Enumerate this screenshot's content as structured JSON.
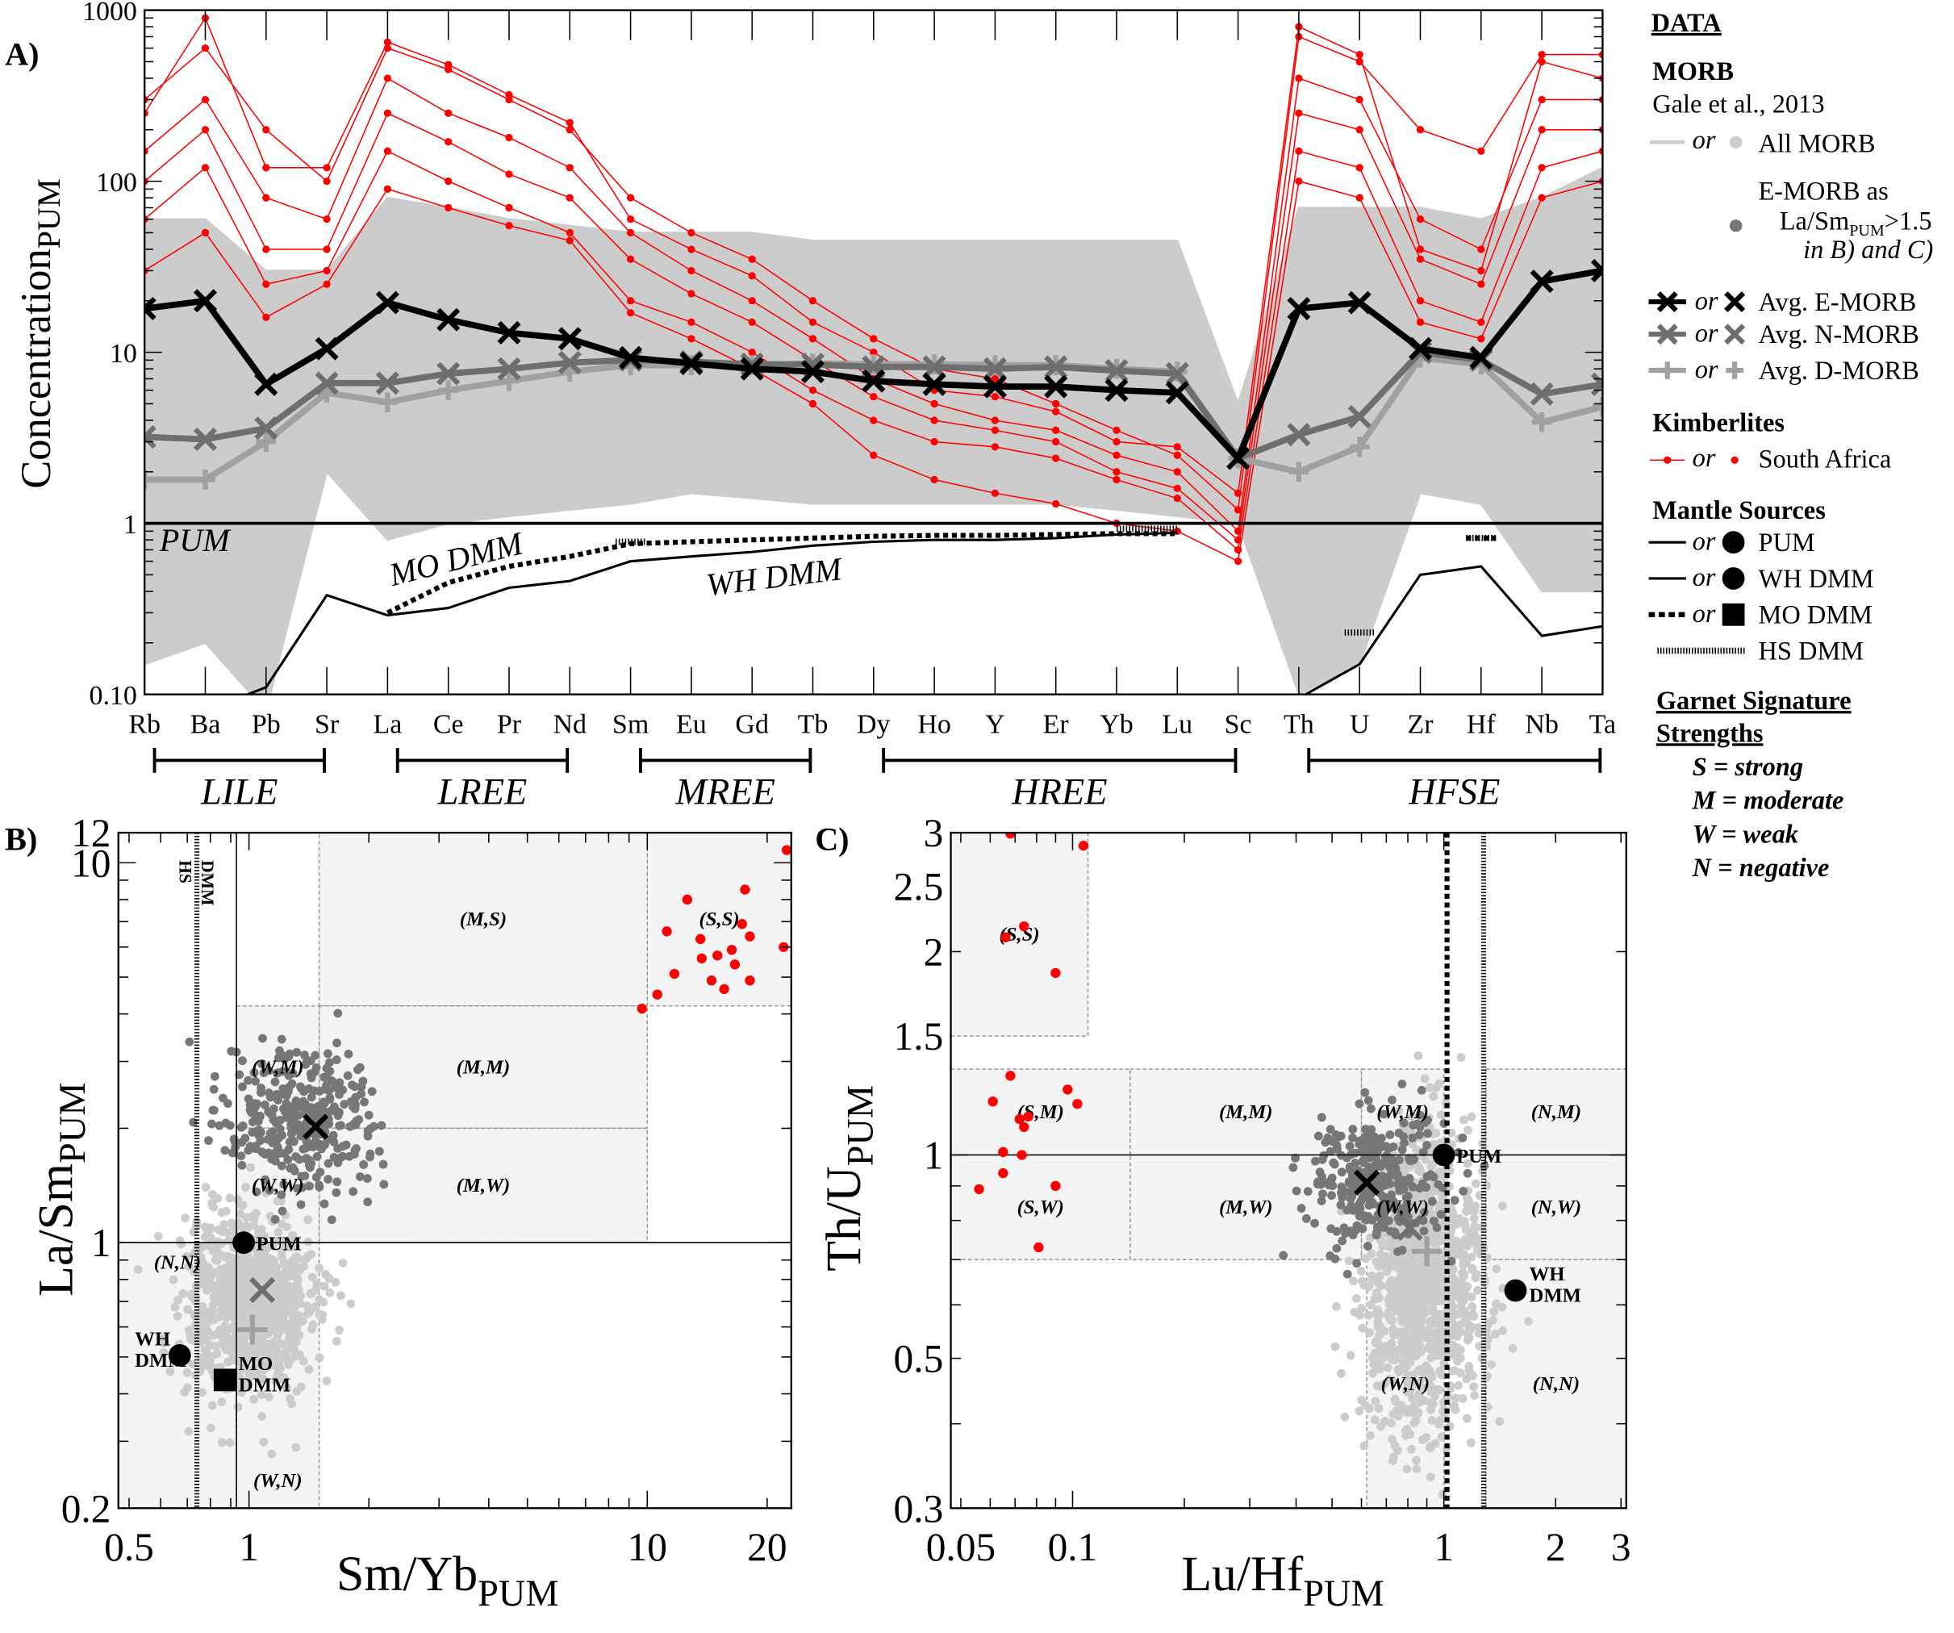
{
  "panels": {
    "a": "A)",
    "b": "B)",
    "c": "C)"
  },
  "legend": {
    "title": "DATA",
    "morb_heading": "MORB",
    "morb_source": "Gale et al., 2013",
    "or": "or",
    "all_morb": "All MORB",
    "emorb_def_1": "E-MORB as",
    "emorb_def_2": "La/Sm",
    "emorb_def_sub": "PUM",
    "emorb_def_3": ">1.5",
    "emorb_def_4": "in B) and C)",
    "avg_e": "Avg. E-MORB",
    "avg_n": "Avg. N-MORB",
    "avg_d": "Avg. D-MORB",
    "kimb_heading": "Kimberlites",
    "kimb_sa": "South Africa",
    "mantle_heading": "Mantle Sources",
    "pum": "PUM",
    "wh": "WH DMM",
    "mo": "MO DMM",
    "hs": "HS DMM",
    "garnet_1": "Garnet Signature",
    "garnet_2": "Strengths",
    "s": "S = strong",
    "m": "M = moderate",
    "w": "W = weak",
    "n": "N = negative"
  },
  "colors": {
    "emorb": "#000000",
    "nmorb": "#6e6e6e",
    "dmorb": "#a0a0a0",
    "morb": "#cccccc",
    "emorb_points": "#777777",
    "kimberlite": "#ff0000"
  },
  "chart_data": [
    {
      "type": "line",
      "panel": "A)",
      "yscale": "log",
      "ylim": [
        0.1,
        1000
      ],
      "ylabel": "Concentration",
      "ylabel_sub": "PUM",
      "y_ticks": [
        {
          "v": 1000,
          "t": "1000"
        },
        {
          "v": 100,
          "t": "100"
        },
        {
          "v": 10,
          "t": "10"
        },
        {
          "v": 1,
          "t": "1"
        },
        {
          "v": 0.1,
          "t": "0.10"
        }
      ],
      "categories": [
        "Rb",
        "Ba",
        "Pb",
        "Sr",
        "La",
        "Ce",
        "Pr",
        "Nd",
        "Sm",
        "Eu",
        "Gd",
        "Tb",
        "Dy",
        "Ho",
        "Y",
        "Er",
        "Yb",
        "Lu",
        "Sc",
        "Th",
        "U",
        "Zr",
        "Hf",
        "Nb",
        "Ta"
      ],
      "groups": [
        {
          "label": "LILE",
          "from": "Rb",
          "to": "Sr"
        },
        {
          "label": "LREE",
          "from": "La",
          "to": "Nd"
        },
        {
          "label": "MREE",
          "from": "Sm",
          "to": "Tb"
        },
        {
          "label": "HREE",
          "from": "Dy",
          "to": "Sc"
        },
        {
          "label": "HFSE",
          "from": "Th",
          "to": "Ta"
        }
      ],
      "morb_envelope": {
        "upper": [
          60,
          60,
          30,
          30,
          80,
          70,
          60,
          55,
          50,
          50,
          50,
          45,
          45,
          45,
          45,
          45,
          45,
          45,
          5,
          70,
          70,
          70,
          60,
          80,
          120
        ],
        "lower": [
          0.15,
          0.2,
          0.08,
          2,
          0.8,
          1.0,
          1.1,
          1.2,
          1.3,
          1.5,
          1.4,
          1.3,
          1.3,
          1.3,
          1.3,
          1.3,
          1.2,
          1.1,
          1.0,
          0.1,
          0.15,
          1.5,
          1.3,
          0.4,
          0.4
        ]
      },
      "kimberlites": [
        [
          300,
          600,
          200,
          100,
          600,
          450,
          300,
          200,
          80,
          50,
          35,
          20,
          12,
          8,
          7,
          5,
          3.5,
          2.5,
          1.2,
          700,
          500,
          200,
          150,
          550,
          550
        ],
        [
          150,
          300,
          80,
          60,
          400,
          250,
          180,
          120,
          50,
          30,
          20,
          12,
          7,
          5,
          4,
          3.5,
          2.5,
          2,
          0.9,
          400,
          300,
          60,
          40,
          300,
          300
        ],
        [
          100,
          200,
          40,
          40,
          250,
          170,
          110,
          80,
          35,
          22,
          15,
          9,
          5.5,
          4,
          3.5,
          3,
          2,
          1.6,
          0.8,
          250,
          200,
          35,
          25,
          200,
          200
        ],
        [
          60,
          120,
          25,
          30,
          150,
          100,
          70,
          50,
          20,
          15,
          10,
          6,
          4,
          3,
          2.8,
          2.4,
          1.8,
          1.4,
          0.7,
          150,
          120,
          20,
          15,
          120,
          150
        ],
        [
          30,
          50,
          16,
          25,
          90,
          70,
          55,
          45,
          17,
          12,
          8,
          5,
          2.5,
          1.8,
          1.5,
          1.3,
          1.0,
          0.9,
          0.6,
          100,
          80,
          15,
          12,
          80,
          100
        ],
        [
          250,
          900,
          120,
          120,
          650,
          480,
          320,
          220,
          60,
          40,
          28,
          15,
          10,
          6,
          5.5,
          4.5,
          3,
          2.8,
          1.5,
          800,
          550,
          40,
          30,
          500,
          400
        ]
      ],
      "avg_emorb": [
        18,
        20,
        6.5,
        10.5,
        19.5,
        15.5,
        13,
        12,
        9.3,
        8.6,
        8,
        7.7,
        6.8,
        6.5,
        6.3,
        6.3,
        6,
        5.8,
        2.4,
        18,
        19.5,
        10.5,
        9.3,
        26,
        30
      ],
      "avg_nmorb": [
        3.2,
        3.1,
        3.6,
        6.6,
        6.6,
        7.5,
        8,
        8.7,
        9,
        8.8,
        8.5,
        8.5,
        8.2,
        8.2,
        8,
        8.2,
        7.8,
        7.5,
        2.4,
        3.3,
        4.2,
        10,
        9,
        5.7,
        6.5
      ],
      "avg_dmorb": [
        1.8,
        1.8,
        3.0,
        5.8,
        5.1,
        6.0,
        6.8,
        7.7,
        8.4,
        8.4,
        8.4,
        8.6,
        8.5,
        8.5,
        8.4,
        8.4,
        8.0,
        7.7,
        2.4,
        2.0,
        2.8,
        9.3,
        8.5,
        3.9,
        4.8
      ],
      "pum": [
        1,
        1,
        1,
        1,
        1,
        1,
        1,
        1,
        1,
        1,
        1,
        1,
        1,
        1,
        1,
        1,
        1,
        1,
        1,
        1,
        1,
        1,
        1,
        1,
        1
      ],
      "wh_dmm": [
        null,
        0.08,
        0.11,
        0.38,
        0.29,
        0.32,
        0.42,
        0.46,
        0.6,
        0.64,
        0.68,
        0.74,
        0.78,
        0.8,
        0.8,
        0.82,
        0.86,
        0.88,
        null,
        0.095,
        0.15,
        0.5,
        0.56,
        0.22,
        0.25
      ],
      "mo_dmm": [
        null,
        null,
        null,
        null,
        0.3,
        0.45,
        0.56,
        0.64,
        0.76,
        0.78,
        0.8,
        0.82,
        0.84,
        0.85,
        0.85,
        0.86,
        0.87,
        0.87,
        null,
        null,
        null,
        null,
        0.82,
        null,
        null
      ],
      "hs_dmm": [
        null,
        null,
        null,
        null,
        null,
        null,
        null,
        null,
        0.78,
        null,
        null,
        null,
        null,
        null,
        null,
        null,
        0.93,
        0.93,
        null,
        null,
        0.23,
        null,
        0.82,
        null,
        null
      ],
      "annotations": [
        "PUM",
        "MO DMM",
        "WH DMM"
      ]
    },
    {
      "type": "scatter",
      "panel": "B)",
      "xscale": "log",
      "yscale": "log",
      "xlim": [
        0.47,
        23
      ],
      "ylim": [
        0.2,
        12
      ],
      "xlabel": "Sm/Yb",
      "xlabel_sub": "PUM",
      "ylabel": "La/Sm",
      "ylabel_sub": "PUM",
      "x_ticks": [
        {
          "v": 0.5,
          "t": "0.5"
        },
        {
          "v": 1,
          "t": "1"
        },
        {
          "v": 10,
          "t": "10"
        },
        {
          "v": 20,
          "t": "20"
        }
      ],
      "y_ticks": [
        {
          "v": 0.2,
          "t": "0.2"
        },
        {
          "v": 1,
          "t": "1"
        },
        {
          "v": 10,
          "t": "10"
        },
        {
          "v": 12,
          "t": "12"
        }
      ],
      "regions": [
        {
          "label": "(S,S)",
          "x": [
            10,
            23
          ],
          "y": [
            4.2,
            12
          ]
        },
        {
          "label": "(M,S)",
          "x": [
            1.5,
            10
          ],
          "y": [
            4.2,
            12
          ]
        },
        {
          "label": "(M,M)",
          "x": [
            1.5,
            10
          ],
          "y": [
            2,
            4.2
          ]
        },
        {
          "label": "(M,W)",
          "x": [
            1.5,
            10
          ],
          "y": [
            1,
            2
          ]
        },
        {
          "label": "(W,M)",
          "x": [
            0.93,
            1.5
          ],
          "y": [
            2,
            4.2
          ]
        },
        {
          "label": "(W,W)",
          "x": [
            0.93,
            1.5
          ],
          "y": [
            1,
            2
          ]
        },
        {
          "label": "(N,N)",
          "x": [
            0.47,
            0.93
          ],
          "y": [
            0.2,
            1
          ]
        },
        {
          "label": "(W,N)",
          "x": [
            0.93,
            1.5
          ],
          "y": [
            0.2,
            1
          ]
        }
      ],
      "hs_dmm_x": 0.74,
      "hs_label": "HS DMM",
      "ref_x": 0.93,
      "ref_y": 1,
      "morb_clouds": [
        {
          "kind": "all",
          "center": [
            1.0,
            0.7
          ],
          "log_spread": [
            0.08,
            0.12
          ],
          "n": 900
        },
        {
          "kind": "emorb",
          "center": [
            1.35,
            2.1
          ],
          "log_spread": [
            0.1,
            0.09
          ],
          "n": 350
        }
      ],
      "kimberlites": [
        [
          9.7,
          4.13
        ],
        [
          10.6,
          4.5
        ],
        [
          11.7,
          5.1
        ],
        [
          11.2,
          6.6
        ],
        [
          12.6,
          8
        ],
        [
          13.7,
          5.6
        ],
        [
          15,
          5.7
        ],
        [
          15.6,
          4.65
        ],
        [
          16.3,
          5.9
        ],
        [
          16.6,
          5.4
        ],
        [
          17.3,
          6.9
        ],
        [
          17.6,
          8.5
        ],
        [
          18.1,
          6.4
        ],
        [
          18.1,
          4.9
        ],
        [
          22.4,
          10.8
        ],
        [
          22,
          6.0
        ],
        [
          13.6,
          6.3
        ],
        [
          14.5,
          4.9
        ]
      ],
      "sources": [
        {
          "name": "PUM",
          "x": 0.97,
          "y": 1.0,
          "marker": "circle"
        },
        {
          "name": "WH DMM",
          "x": 0.67,
          "y": 0.505,
          "marker": "circle"
        },
        {
          "name": "MO DMM",
          "x": 0.87,
          "y": 0.435,
          "marker": "square"
        }
      ],
      "averages": {
        "emorb": [
          1.47,
          2.02
        ],
        "nmorb": [
          1.08,
          0.75
        ],
        "dmorb": [
          1.02,
          0.59
        ]
      }
    },
    {
      "type": "scatter",
      "panel": "C)",
      "xscale": "log",
      "yscale": "log",
      "xlim": [
        0.047,
        3.1
      ],
      "ylim": [
        0.3,
        3
      ],
      "xlabel": "Lu/Hf",
      "xlabel_sub": "PUM",
      "ylabel": "Th/U",
      "ylabel_sub": "PUM",
      "x_ticks": [
        {
          "v": 0.05,
          "t": "0.05"
        },
        {
          "v": 0.1,
          "t": "0.1"
        },
        {
          "v": 1,
          "t": "1"
        },
        {
          "v": 2,
          "t": "2"
        },
        {
          "v": 3,
          "t": "3"
        }
      ],
      "y_ticks": [
        {
          "v": 0.3,
          "t": "0.3"
        },
        {
          "v": 0.5,
          "t": "0.5"
        },
        {
          "v": 1,
          "t": "1"
        },
        {
          "v": 1.5,
          "t": "1.5"
        },
        {
          "v": 2,
          "t": "2"
        },
        {
          "v": 2.5,
          "t": "2.5"
        },
        {
          "v": 3,
          "t": "3"
        }
      ],
      "regions": [
        {
          "label": "(S,S)",
          "x": [
            0.047,
            0.11
          ],
          "y": [
            1.5,
            3
          ]
        },
        {
          "label": "(S,M)",
          "x": [
            0.047,
            0.143
          ],
          "y": [
            1,
            1.34
          ]
        },
        {
          "label": "(S,W)",
          "x": [
            0.047,
            0.143
          ],
          "y": [
            0.7,
            1
          ]
        },
        {
          "label": "(M,M)",
          "x": [
            0.143,
            0.6
          ],
          "y": [
            1,
            1.34
          ]
        },
        {
          "label": "(M,W)",
          "x": [
            0.143,
            0.6
          ],
          "y": [
            0.7,
            1
          ]
        },
        {
          "label": "(W,M)",
          "x": [
            0.6,
            1.0
          ],
          "y": [
            1,
            1.34
          ]
        },
        {
          "label": "(W,W)",
          "x": [
            0.6,
            1.0
          ],
          "y": [
            0.7,
            1
          ]
        },
        {
          "label": "(W,N)",
          "x": [
            0.62,
            1.0
          ],
          "y": [
            0.3,
            0.7
          ]
        },
        {
          "label": "(N,M)",
          "x": [
            1.3,
            3.1
          ],
          "y": [
            1,
            1.34
          ]
        },
        {
          "label": "(N,W)",
          "x": [
            1.3,
            3.1
          ],
          "y": [
            0.7,
            1
          ]
        },
        {
          "label": "(N,N)",
          "x": [
            1.3,
            3.1
          ],
          "y": [
            0.3,
            0.7
          ]
        }
      ],
      "ref_y": 1,
      "mo_dmm_x": 1.02,
      "hs_dmm_x": 1.28,
      "morb_clouds": [
        {
          "kind": "all",
          "center": [
            0.88,
            0.65
          ],
          "log_spread": [
            0.08,
            0.1
          ],
          "n": 1200
        },
        {
          "kind": "emorb",
          "center": [
            0.66,
            0.92
          ],
          "log_spread": [
            0.09,
            0.05
          ],
          "n": 300
        }
      ],
      "kimberlites": [
        [
          0.068,
          2.99
        ],
        [
          0.107,
          2.87
        ],
        [
          0.066,
          2.1
        ],
        [
          0.074,
          2.18
        ],
        [
          0.09,
          1.86
        ],
        [
          0.068,
          1.31
        ],
        [
          0.061,
          1.2
        ],
        [
          0.072,
          1.13
        ],
        [
          0.076,
          1.14
        ],
        [
          0.074,
          1.1
        ],
        [
          0.097,
          1.25
        ],
        [
          0.103,
          1.19
        ],
        [
          0.065,
          1.01
        ],
        [
          0.073,
          1.0
        ],
        [
          0.065,
          0.94
        ],
        [
          0.056,
          0.89
        ],
        [
          0.09,
          0.9
        ],
        [
          0.081,
          0.73
        ]
      ],
      "sources": [
        {
          "name": "PUM",
          "x": 1.0,
          "y": 1.0,
          "marker": "circle"
        },
        {
          "name": "WH DMM",
          "x": 1.56,
          "y": 0.63,
          "marker": "circle"
        }
      ],
      "averages": {
        "emorb": [
          0.62,
          0.91
        ],
        "nmorb": [
          0.81,
          0.78
        ],
        "dmorb": [
          0.9,
          0.72
        ]
      }
    }
  ]
}
